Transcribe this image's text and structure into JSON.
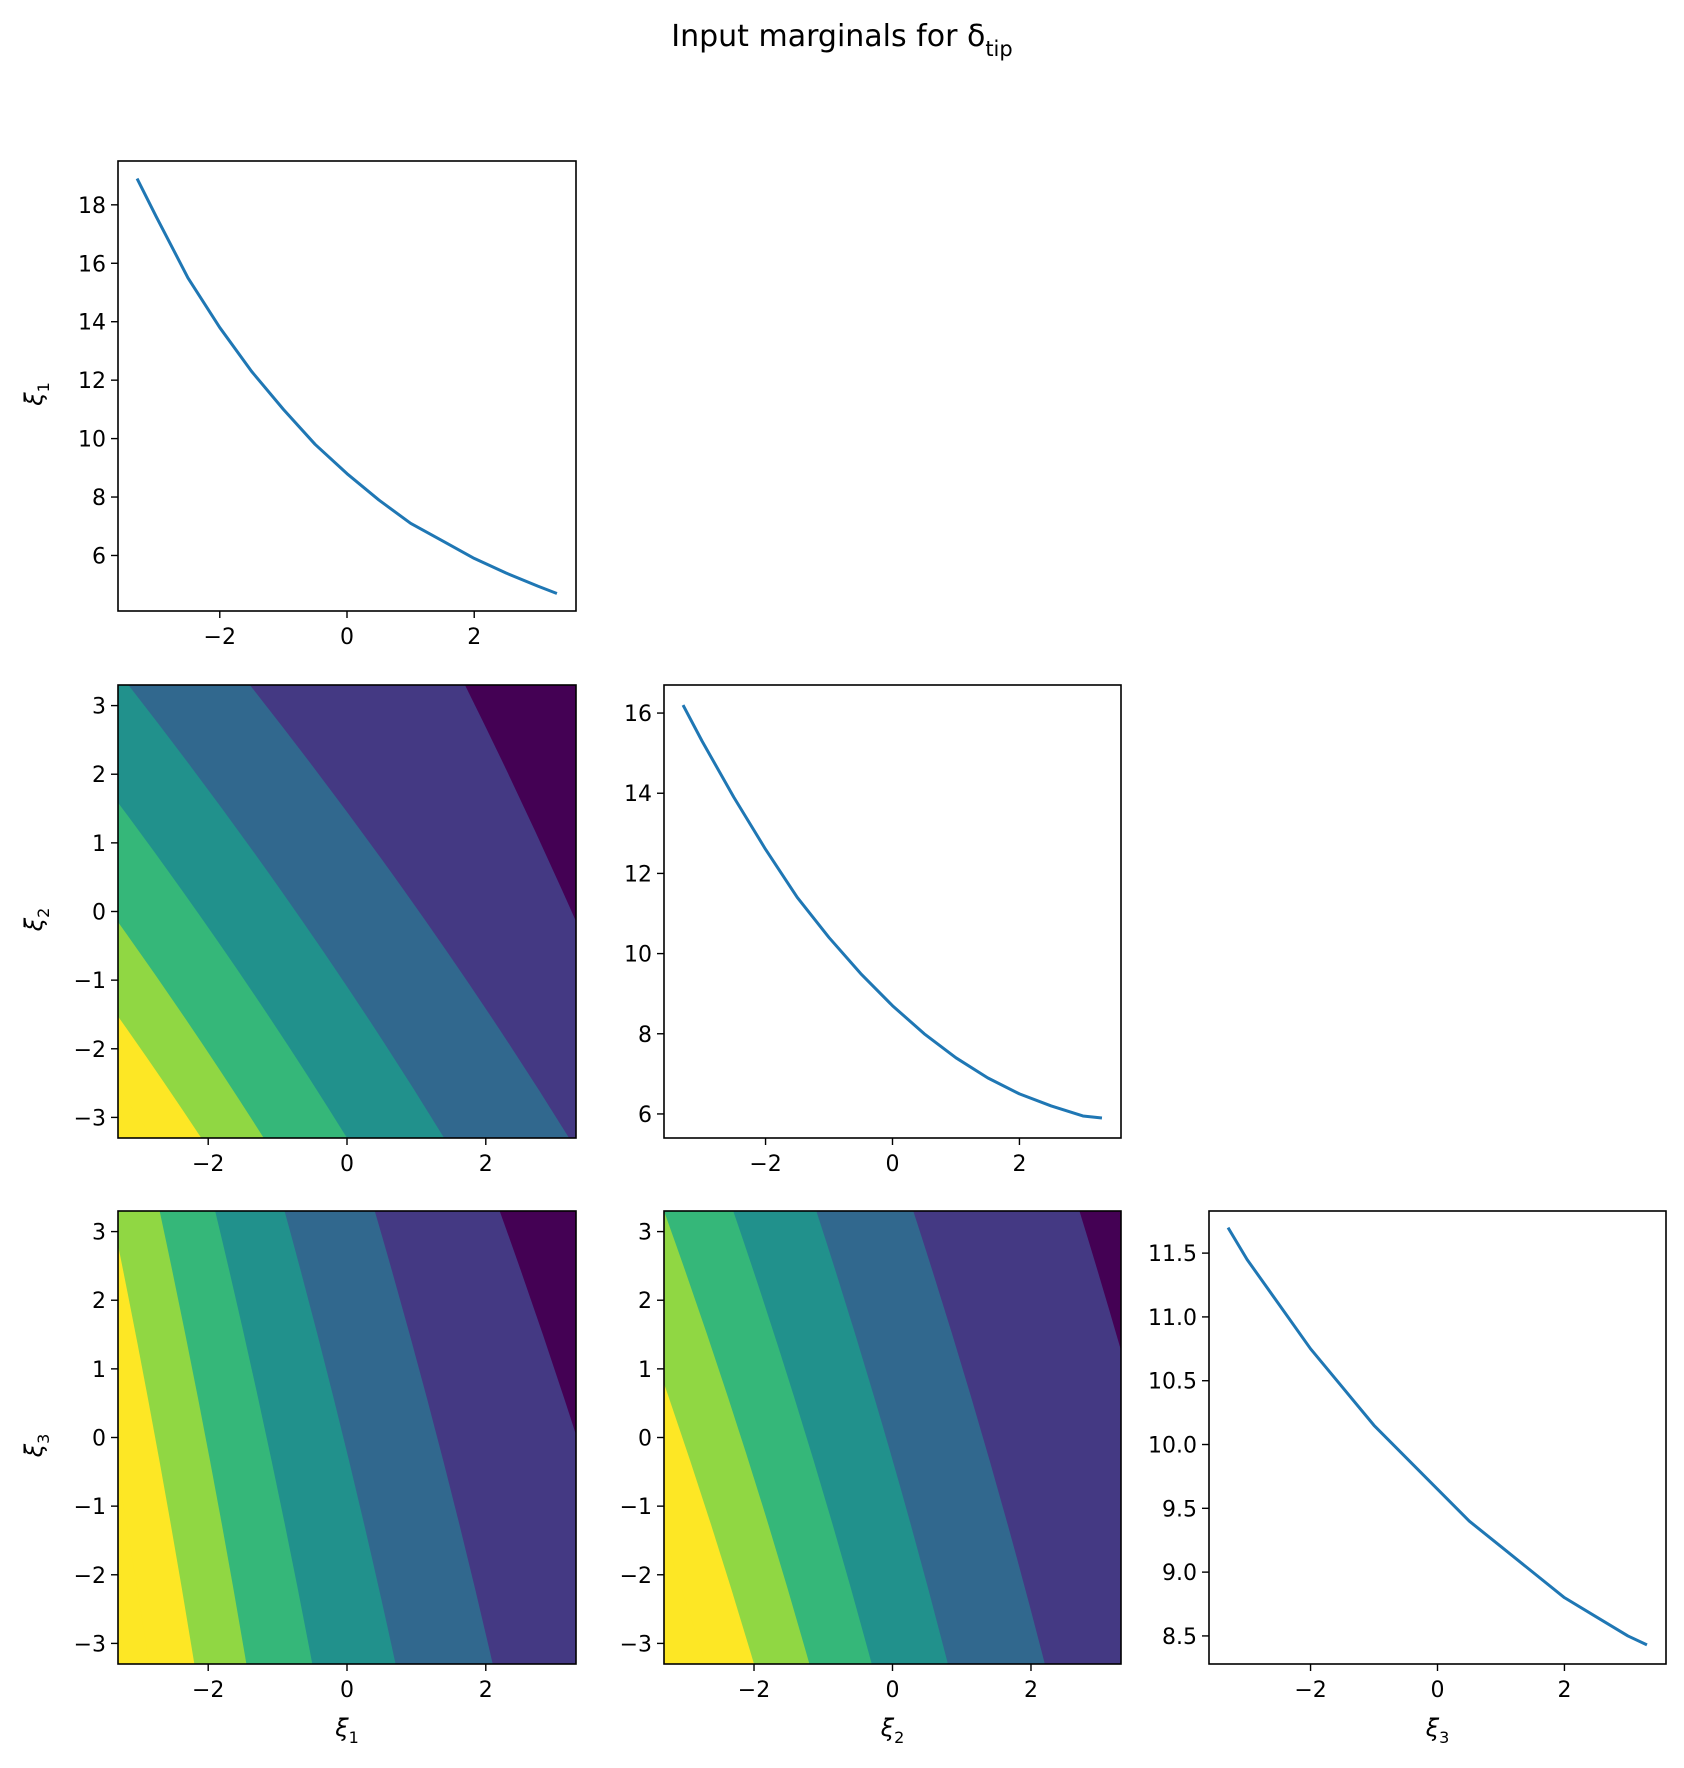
{
  "chart_data": {
    "type": "contour",
    "title": "Input marginals for δ",
    "title_subscript": "tip",
    "variables": [
      "ξ₁",
      "ξ₂",
      "ξ₃"
    ],
    "colormap": "viridis",
    "grid": false,
    "diagonal": [
      {
        "type": "line",
        "variable": "ξ₁",
        "ylabel": "ξ₁",
        "xlabel": "",
        "xlim": [
          -3.6,
          3.6
        ],
        "ylim": [
          4.1,
          19.5
        ],
        "xticks": [
          "−2",
          "0",
          "2"
        ],
        "yticks": [
          "6",
          "8",
          "10",
          "12",
          "14",
          "16",
          "18"
        ],
        "color": "#1f77b4",
        "x": [
          -3.3,
          -3.0,
          -2.5,
          -2.0,
          -1.5,
          -1.0,
          -0.5,
          0.0,
          0.5,
          1.0,
          1.5,
          2.0,
          2.5,
          3.0,
          3.3
        ],
        "y": [
          18.9,
          17.6,
          15.5,
          13.8,
          12.3,
          11.0,
          9.8,
          8.8,
          7.9,
          7.1,
          6.5,
          5.9,
          5.4,
          4.95,
          4.7
        ]
      },
      {
        "type": "line",
        "variable": "ξ₂",
        "xlabel": "",
        "xlim": [
          -3.6,
          3.6
        ],
        "ylim": [
          5.4,
          16.7
        ],
        "xticks": [
          "−2",
          "0",
          "2"
        ],
        "yticks": [
          "6",
          "8",
          "10",
          "12",
          "14",
          "16"
        ],
        "color": "#1f77b4",
        "x": [
          -3.3,
          -3.0,
          -2.5,
          -2.0,
          -1.5,
          -1.0,
          -0.5,
          0.0,
          0.5,
          1.0,
          1.5,
          2.0,
          2.5,
          3.0,
          3.3
        ],
        "y": [
          16.2,
          15.3,
          13.9,
          12.6,
          11.4,
          10.4,
          9.5,
          8.7,
          8.0,
          7.4,
          6.9,
          6.5,
          6.2,
          5.95,
          5.9
        ]
      },
      {
        "type": "line",
        "variable": "ξ₃",
        "xlabel": "ξ₃",
        "xlim": [
          -3.6,
          3.6
        ],
        "ylim": [
          8.28,
          11.83
        ],
        "xticks": [
          "−2",
          "0",
          "2"
        ],
        "yticks": [
          "8.5",
          "9.0",
          "9.5",
          "10.0",
          "10.5",
          "11.0",
          "11.5"
        ],
        "color": "#1f77b4",
        "x": [
          -3.3,
          -3.0,
          -2.5,
          -2.0,
          -1.5,
          -1.0,
          -0.5,
          0.0,
          0.5,
          1.0,
          1.5,
          2.0,
          2.5,
          3.0,
          3.3
        ],
        "y": [
          11.7,
          11.45,
          11.1,
          10.75,
          10.45,
          10.15,
          9.9,
          9.65,
          9.4,
          9.2,
          9.0,
          8.8,
          8.65,
          8.5,
          8.43
        ]
      }
    ],
    "off_diagonal": [
      {
        "type": "contourf",
        "x_variable": "ξ₁",
        "y_variable": "ξ₂",
        "xlabel": "",
        "ylabel": "ξ₂",
        "xlim": [
          -3.3,
          3.3
        ],
        "ylim": [
          -3.3,
          3.3
        ],
        "xticks": [
          "−2",
          "0",
          "2"
        ],
        "yticks": [
          "−3",
          "−2",
          "−1",
          "0",
          "1",
          "2",
          "3"
        ],
        "colors": [
          "#440154",
          "#443983",
          "#31688e",
          "#21918c",
          "#35b779",
          "#90d743",
          "#fde725"
        ],
        "boundaries": [
          {
            "x_at_bottom": 4.6,
            "x_at_top": 1.7
          },
          {
            "x_at_bottom": 3.2,
            "x_at_top": -1.4
          },
          {
            "x_at_bottom": 1.4,
            "x_at_top": -3.15
          },
          {
            "x_at_bottom": 0.0,
            "x_at_top": -4.6
          },
          {
            "x_at_bottom": -1.2,
            "x_at_top": -5.9
          },
          {
            "x_at_bottom": -2.1,
            "x_at_top": -7.0
          },
          {
            "x_at_bottom": -2.8,
            "x_at_top": -7.9
          }
        ]
      },
      {
        "type": "contourf",
        "x_variable": "ξ₁",
        "y_variable": "ξ₃",
        "xlabel": "ξ₁",
        "ylabel": "ξ₃",
        "xlim": [
          -3.3,
          3.3
        ],
        "ylim": [
          -3.3,
          3.3
        ],
        "xticks": [
          "−2",
          "0",
          "2"
        ],
        "yticks": [
          "−3",
          "−2",
          "−1",
          "0",
          "1",
          "2",
          "3"
        ],
        "colors": [
          "#440154",
          "#443983",
          "#31688e",
          "#21918c",
          "#35b779",
          "#90d743",
          "#fde725"
        ],
        "boundaries": [
          {
            "x_at_bottom": 4.3,
            "x_at_top": 2.2
          },
          {
            "x_at_bottom": 2.1,
            "x_at_top": 0.4
          },
          {
            "x_at_bottom": 0.7,
            "x_at_top": -0.9
          },
          {
            "x_at_bottom": -0.5,
            "x_at_top": -1.9
          },
          {
            "x_at_bottom": -1.45,
            "x_at_top": -2.7
          },
          {
            "x_at_bottom": -2.2,
            "x_at_top": -3.4
          },
          {
            "x_at_bottom": -2.85,
            "x_at_top": -4.0
          }
        ]
      },
      {
        "type": "contourf",
        "x_variable": "ξ₂",
        "y_variable": "ξ₃",
        "xlabel": "ξ₂",
        "ylabel": "",
        "xlim": [
          -3.3,
          3.3
        ],
        "ylim": [
          -3.3,
          3.3
        ],
        "xticks": [
          "−2",
          "0",
          "2"
        ],
        "yticks": [
          "−3",
          "−2",
          "−1",
          "0",
          "1",
          "2",
          "3"
        ],
        "colors": [
          "#440154",
          "#443983",
          "#31688e",
          "#21918c",
          "#35b779",
          "#90d743",
          "#fde725"
        ],
        "boundaries": [
          {
            "x_at_bottom": 4.5,
            "x_at_top": 2.7
          },
          {
            "x_at_bottom": 2.2,
            "x_at_top": 0.3
          },
          {
            "x_at_bottom": 0.8,
            "x_at_top": -1.1
          },
          {
            "x_at_bottom": -0.3,
            "x_at_top": -2.3
          },
          {
            "x_at_bottom": -1.2,
            "x_at_top": -3.3
          },
          {
            "x_at_bottom": -2.0,
            "x_at_top": -4.2
          },
          {
            "x_at_bottom": -2.7,
            "x_at_top": -5.0
          }
        ]
      }
    ]
  }
}
